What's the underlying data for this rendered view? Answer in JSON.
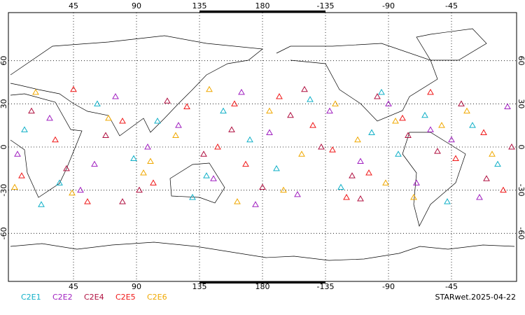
{
  "chart_data": {
    "type": "scatter",
    "xlim": [
      0,
      360
    ],
    "ylim": [
      -90,
      90
    ],
    "xticks": [
      45,
      90,
      135,
      180,
      {
        "value": 225,
        "label": "-135"
      },
      {
        "value": 270,
        "label": "-90"
      },
      {
        "value": 315,
        "label": "-45"
      }
    ],
    "yticks": [
      -60,
      -30,
      0,
      30,
      60
    ],
    "grid": true,
    "footer": "STARwet.2025-04-22",
    "series": [
      {
        "name": "C2E1",
        "color": "#10b0c8",
        "x": [
          10,
          35,
          62,
          88,
          105,
          130,
          152,
          171,
          190,
          214,
          236,
          258,
          277,
          296,
          312,
          330,
          348,
          22,
          140,
          265
        ],
        "y": [
          12,
          -25,
          30,
          -8,
          18,
          -35,
          25,
          5,
          -15,
          33,
          -28,
          10,
          -5,
          22,
          -38,
          15,
          -12,
          -40,
          -20,
          38
        ]
      },
      {
        "name": "C2E2",
        "color": "#a020c0",
        "x": [
          5,
          28,
          50,
          75,
          98,
          120,
          145,
          165,
          185,
          205,
          228,
          250,
          270,
          290,
          315,
          335,
          355,
          60,
          175,
          300
        ],
        "y": [
          -5,
          20,
          -30,
          35,
          0,
          15,
          -22,
          38,
          10,
          -33,
          25,
          -10,
          30,
          -25,
          5,
          -35,
          28,
          -12,
          -40,
          12
        ]
      },
      {
        "name": "C2E4",
        "color": "#b01040",
        "x": [
          15,
          40,
          68,
          92,
          112,
          138,
          158,
          180,
          200,
          222,
          244,
          262,
          284,
          305,
          322,
          340,
          358,
          80,
          210,
          250
        ],
        "y": [
          25,
          -15,
          8,
          -30,
          32,
          -5,
          12,
          -28,
          22,
          0,
          -20,
          35,
          8,
          -3,
          30,
          -22,
          0,
          -38,
          40,
          -36
        ]
      },
      {
        "name": "C2E5",
        "color": "#f01818",
        "x": [
          8,
          32,
          55,
          80,
          102,
          126,
          148,
          168,
          192,
          216,
          240,
          256,
          280,
          300,
          318,
          338,
          352,
          45,
          160,
          230
        ],
        "y": [
          -20,
          5,
          -38,
          18,
          -25,
          28,
          0,
          -12,
          35,
          15,
          -35,
          -18,
          20,
          38,
          -8,
          10,
          -30,
          40,
          30,
          -2
        ]
      },
      {
        "name": "C2E6",
        "color": "#f0a800",
        "x": [
          18,
          44,
          70,
          95,
          118,
          142,
          162,
          185,
          208,
          232,
          248,
          268,
          288,
          308,
          326,
          344,
          3,
          100,
          195,
          275
        ],
        "y": [
          38,
          -32,
          20,
          -18,
          8,
          40,
          -38,
          25,
          -5,
          30,
          5,
          -25,
          -35,
          15,
          25,
          -5,
          -28,
          -10,
          -30,
          18
        ]
      }
    ]
  }
}
